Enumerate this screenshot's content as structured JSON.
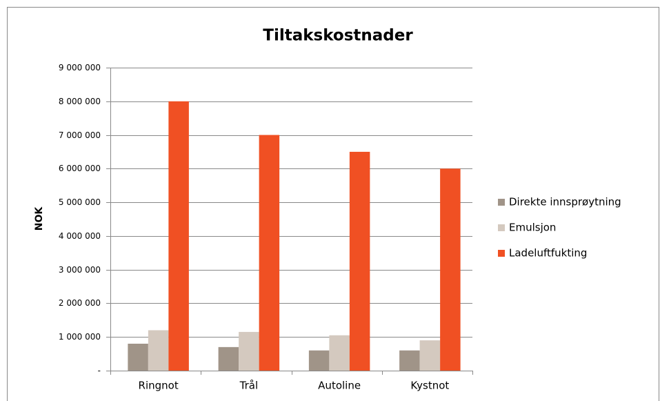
{
  "chart_data": {
    "type": "bar",
    "title": "Tiltakskostnader",
    "y_label": "NOK",
    "categories": [
      "Ringnot",
      "Trål",
      "Autoline",
      "Kystnot"
    ],
    "series": [
      {
        "name": "Direkte innsprøytning",
        "color": "#a09488",
        "values": [
          800000,
          700000,
          600000,
          600000
        ]
      },
      {
        "name": "Emulsjon",
        "color": "#d4c9bf",
        "values": [
          1200000,
          1150000,
          1050000,
          900000
        ]
      },
      {
        "name": "Ladeluftfukting",
        "color": "#f05023",
        "values": [
          8000000,
          7000000,
          6500000,
          6000000
        ]
      }
    ],
    "ylim": [
      0,
      9000000
    ],
    "yticks": [
      {
        "value": 0,
        "label": "-"
      },
      {
        "value": 1000000,
        "label": "1 000 000"
      },
      {
        "value": 2000000,
        "label": "2 000 000"
      },
      {
        "value": 3000000,
        "label": "3 000 000"
      },
      {
        "value": 4000000,
        "label": "4 000 000"
      },
      {
        "value": 5000000,
        "label": "5 000 000"
      },
      {
        "value": 6000000,
        "label": "6 000 000"
      },
      {
        "value": 7000000,
        "label": "7 000 000"
      },
      {
        "value": 8000000,
        "label": "8 000 000"
      },
      {
        "value": 9000000,
        "label": "9 000 000"
      }
    ],
    "grid": true,
    "legend": "right"
  }
}
